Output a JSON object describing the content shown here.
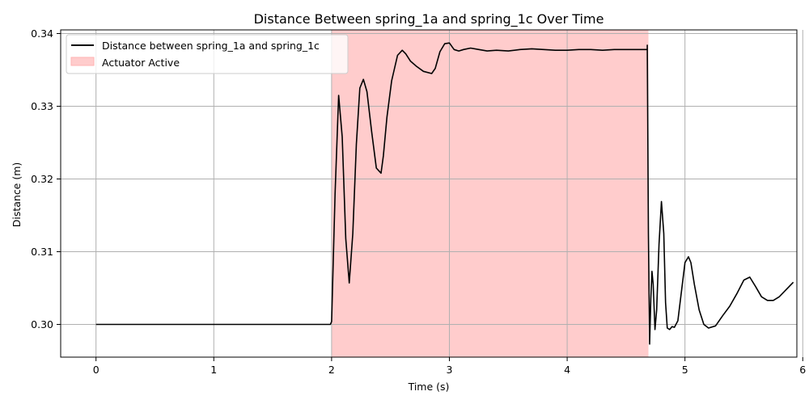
{
  "chart_data": {
    "type": "line",
    "title": "Distance Between spring_1a and spring_1c Over Time",
    "xlabel": "Time (s)",
    "ylabel": "Distance (m)",
    "xlim": [
      -0.3,
      5.95
    ],
    "ylim": [
      0.2955,
      0.3405
    ],
    "xticks": [
      0,
      1,
      2,
      3,
      4,
      5,
      6
    ],
    "yticks": [
      0.3,
      0.31,
      0.32,
      0.33,
      0.34
    ],
    "xtick_labels": [
      "0",
      "1",
      "2",
      "3",
      "4",
      "5",
      "6"
    ],
    "ytick_labels": [
      "0.30",
      "0.31",
      "0.32",
      "0.33",
      "0.34"
    ],
    "grid": true,
    "legend_position": "top-left",
    "shaded_region": {
      "name": "Actuator Active",
      "x_start": 2.0,
      "x_end": 4.69,
      "color": "#ffcccc"
    },
    "series": [
      {
        "name": "Distance between spring_1a and spring_1c",
        "color": "#000000",
        "x": [
          0,
          1.99,
          2.0,
          2.03,
          2.06,
          2.09,
          2.12,
          2.15,
          2.18,
          2.21,
          2.24,
          2.27,
          2.3,
          2.34,
          2.38,
          2.42,
          2.44,
          2.47,
          2.51,
          2.56,
          2.6,
          2.63,
          2.67,
          2.72,
          2.78,
          2.85,
          2.88,
          2.92,
          2.96,
          3.0,
          3.04,
          3.08,
          3.12,
          3.18,
          3.25,
          3.32,
          3.4,
          3.5,
          3.6,
          3.7,
          3.8,
          3.9,
          4.0,
          4.1,
          4.2,
          4.3,
          4.4,
          4.5,
          4.6,
          4.68,
          4.68,
          4.69,
          4.7,
          4.71,
          4.72,
          4.73,
          4.745,
          4.76,
          4.78,
          4.8,
          4.82,
          4.835,
          4.85,
          4.87,
          4.89,
          4.91,
          4.94,
          4.97,
          5.0,
          5.03,
          5.05,
          5.08,
          5.12,
          5.16,
          5.2,
          5.26,
          5.32,
          5.38,
          5.44,
          5.5,
          5.55,
          5.6,
          5.65,
          5.7,
          5.75,
          5.8,
          5.86,
          5.92
        ],
        "y": [
          0.3,
          0.3,
          0.3004,
          0.318,
          0.3315,
          0.3258,
          0.3118,
          0.3057,
          0.3125,
          0.3248,
          0.3325,
          0.3337,
          0.332,
          0.3265,
          0.3215,
          0.3208,
          0.3232,
          0.3285,
          0.3335,
          0.337,
          0.3377,
          0.3372,
          0.3362,
          0.3355,
          0.3348,
          0.3345,
          0.3352,
          0.3375,
          0.3386,
          0.3387,
          0.3378,
          0.3376,
          0.3378,
          0.338,
          0.3378,
          0.3376,
          0.3377,
          0.3376,
          0.3378,
          0.3379,
          0.3378,
          0.3377,
          0.3377,
          0.3378,
          0.3378,
          0.3377,
          0.3378,
          0.3378,
          0.3378,
          0.3378,
          0.3384,
          0.3125,
          0.2973,
          0.3035,
          0.3073,
          0.3055,
          0.2993,
          0.302,
          0.311,
          0.3169,
          0.3125,
          0.303,
          0.2995,
          0.2993,
          0.2997,
          0.2996,
          0.3005,
          0.3045,
          0.3085,
          0.3093,
          0.3085,
          0.3055,
          0.302,
          0.3,
          0.2995,
          0.2998,
          0.3012,
          0.3025,
          0.3042,
          0.3061,
          0.3065,
          0.3052,
          0.3038,
          0.3033,
          0.3033,
          0.3038,
          0.3048,
          0.3058
        ]
      }
    ]
  }
}
